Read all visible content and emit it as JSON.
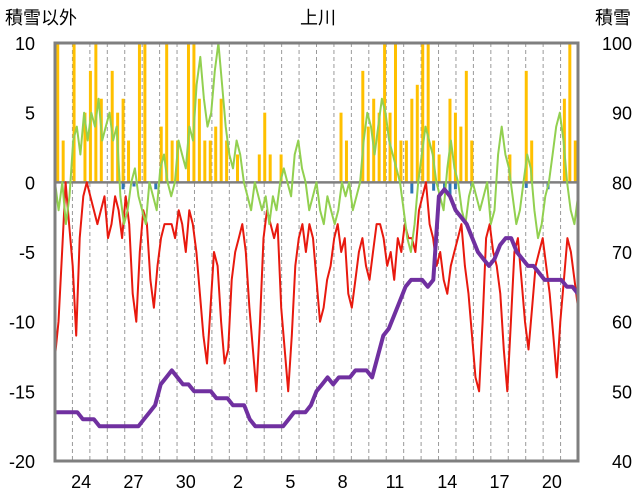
{
  "chart_data": {
    "type": "line",
    "title": "上川",
    "left_axis_label": "積雪以外",
    "right_axis_label": "積雪",
    "left_ylim": [
      -20,
      10
    ],
    "right_ylim": [
      40,
      100
    ],
    "left_yticks": [
      "10",
      "5",
      "0",
      "-5",
      "-10",
      "-15",
      "-20"
    ],
    "right_yticks": [
      "100",
      "90",
      "80",
      "70",
      "60",
      "50",
      "40"
    ],
    "x_tick_labels": [
      "24",
      "27",
      "30",
      "2",
      "5",
      "8",
      "11",
      "14",
      "17",
      "20"
    ],
    "x_tick_positions": [
      1.5,
      4.5,
      7.5,
      10.5,
      13.5,
      16.5,
      19.5,
      22.5,
      25.5,
      28.5
    ],
    "xlim": [
      0,
      30
    ],
    "grid": "vertical dashed, every day",
    "series": [
      {
        "color": "#e8190e",
        "axis": "left",
        "values": [
          -12.5,
          -10,
          -5,
          0,
          -3,
          -6,
          -11,
          -4,
          -1,
          0,
          -1,
          -2,
          -3,
          -2,
          -1,
          -4,
          -3,
          -1,
          -2,
          -4,
          -1,
          -3,
          -8,
          -10,
          -5,
          -2,
          -3,
          -7,
          -9,
          -6,
          -4,
          -3,
          -3,
          -3,
          -4,
          -2,
          -3,
          -5,
          -2,
          -3,
          -5,
          -8,
          -11,
          -13,
          -9,
          -5,
          -6,
          -10,
          -13,
          -12,
          -7,
          -5,
          -4,
          -3,
          -5,
          -9,
          -12,
          -15,
          -10,
          -4,
          -2,
          -3,
          -4,
          -3,
          -9,
          -12,
          -15,
          -11,
          -6,
          -4,
          -3,
          -5,
          -3,
          -4,
          -7,
          -10,
          -9,
          -7,
          -6,
          -4,
          -3,
          -5,
          -4,
          -8,
          -9,
          -7,
          -5,
          -4,
          -6,
          -7,
          -5,
          -3,
          -3,
          -4,
          -6,
          -5,
          -7,
          -4,
          -5,
          -3,
          -4,
          -4,
          -5,
          -2,
          -1,
          0,
          -3,
          -4,
          -6,
          -5,
          -7,
          -8,
          -6,
          -5,
          -4,
          -3,
          -6,
          -8,
          -11,
          -14,
          -15,
          -10,
          -4,
          -3,
          -5,
          -6,
          -8,
          -12,
          -15,
          -10,
          -5,
          -4,
          -7,
          -10,
          -12,
          -9,
          -6,
          -5,
          -4,
          -6,
          -8,
          -11,
          -14,
          -10,
          -7,
          -4,
          -5,
          -7,
          -9
        ]
      },
      {
        "color": "#92d050",
        "axis": "left",
        "values": [
          0,
          -2,
          0,
          -3,
          -1,
          3,
          4,
          2,
          5,
          3,
          5,
          4,
          6,
          3,
          4,
          5,
          3,
          4,
          -1,
          -3,
          -2,
          0,
          1,
          -1,
          -2,
          -3,
          0,
          -1,
          -2,
          1,
          2,
          0,
          -1,
          0,
          3,
          2,
          1,
          4,
          3,
          7,
          9,
          6,
          4,
          5,
          8,
          10,
          7,
          4,
          2,
          1,
          3,
          2,
          0,
          -1,
          -2,
          0,
          -1,
          -2,
          -1,
          -3,
          -1,
          -2,
          0,
          1,
          0,
          -1,
          2,
          3,
          1,
          0,
          -2,
          -1,
          0,
          -2,
          -3,
          -1,
          -2,
          -3,
          -2,
          0,
          -1,
          0,
          -2,
          -1,
          0,
          3,
          5,
          4,
          2,
          4,
          6,
          5,
          3,
          2,
          1,
          0,
          -2,
          -4,
          -5,
          -3,
          0,
          2,
          4,
          3,
          2,
          0,
          -1,
          -2,
          1,
          3,
          1,
          0,
          -2,
          -3,
          -1,
          0,
          -1,
          -2,
          -1,
          0,
          -3,
          -2,
          2,
          4,
          2,
          1,
          -1,
          -3,
          -2,
          0,
          2,
          1,
          -2,
          -4,
          -3,
          -1,
          0,
          2,
          4,
          5,
          3,
          0,
          -2,
          -3,
          -1
        ]
      },
      {
        "color": "#7030a0",
        "axis": "right",
        "values": [
          47,
          47,
          47,
          47,
          47,
          46,
          46,
          46,
          45,
          45,
          45,
          45,
          45,
          45,
          45,
          45,
          46,
          47,
          48,
          51,
          52,
          53,
          52,
          51,
          51,
          50,
          50,
          50,
          50,
          49,
          49,
          49,
          48,
          48,
          48,
          46,
          45,
          45,
          45,
          45,
          45,
          45,
          46,
          47,
          47,
          47,
          48,
          50,
          51,
          52,
          51,
          52,
          52,
          52,
          53,
          53,
          53,
          52,
          55,
          58,
          59,
          61,
          63,
          65,
          66,
          66,
          66,
          65,
          66,
          78,
          79,
          78,
          76,
          75,
          74,
          72,
          70,
          69,
          68,
          69,
          71,
          72,
          72,
          70,
          69,
          68,
          68,
          67,
          66,
          66,
          66,
          66,
          65,
          65,
          64
        ]
      },
      {
        "color": "#ffc000",
        "axis": "left",
        "type": "bar",
        "values": [
          10,
          3,
          0,
          10,
          0,
          5,
          8,
          10,
          6,
          0,
          8,
          5,
          6,
          3,
          0,
          10,
          10,
          0,
          0,
          4,
          10,
          3,
          3,
          0,
          10,
          10,
          6,
          3,
          3,
          4,
          6,
          3,
          0,
          2,
          0,
          0,
          0,
          2,
          5,
          2,
          0,
          2,
          0,
          0,
          0,
          0,
          0,
          0,
          0,
          0,
          0,
          0,
          5,
          3,
          0,
          0,
          8,
          4,
          6,
          5,
          10,
          5,
          10,
          3,
          3,
          6,
          7,
          10,
          10,
          3,
          2,
          0,
          6,
          5,
          4,
          8,
          3,
          0,
          0,
          0,
          0,
          0,
          0,
          2,
          0,
          0,
          8,
          3,
          0,
          0,
          0,
          0,
          0,
          6,
          10,
          3
        ]
      },
      {
        "color": "#2e75b6",
        "axis": "left",
        "type": "bar",
        "values": [
          0,
          0,
          0,
          0,
          0,
          0,
          0,
          0,
          0,
          0,
          0,
          0,
          -0.5,
          0,
          -0.3,
          0,
          0,
          0,
          -0.5,
          0,
          0,
          0,
          0,
          0,
          0,
          0,
          0,
          0,
          0,
          0,
          0,
          0,
          0,
          0,
          0,
          0,
          0,
          0,
          0,
          0,
          0,
          0,
          0,
          0,
          0,
          0,
          0,
          0,
          0,
          0,
          0,
          0,
          0,
          0,
          0,
          0,
          0,
          0,
          0,
          0,
          0,
          0,
          0,
          0,
          0,
          -0.8,
          0,
          0,
          0,
          -0.6,
          0,
          -0.4,
          -1,
          -0.5,
          0,
          0,
          -0.3,
          0,
          0,
          0,
          0,
          0,
          0,
          0,
          0,
          0,
          -0.4,
          0,
          0,
          0,
          -0.5,
          0,
          0,
          0,
          0,
          0
        ]
      }
    ]
  }
}
